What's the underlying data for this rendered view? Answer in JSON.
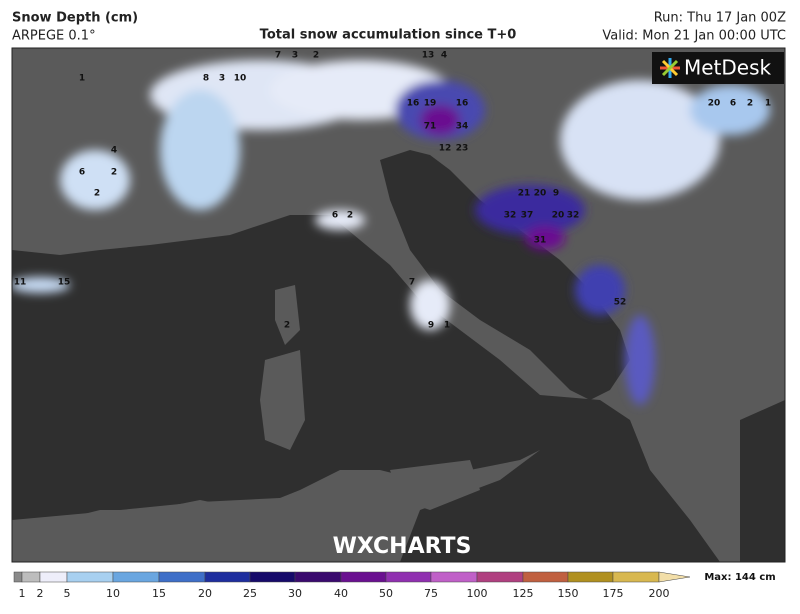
{
  "header": {
    "title": "Snow Depth (cm)",
    "model": "ARPEGE 0.1°",
    "subtitle": "Total snow accumulation since T+0",
    "run": "Run: Thu 17 Jan 00Z",
    "valid": "Valid: Mon 21 Jan 00:00 UTC"
  },
  "logo": "MetDesk",
  "watermark": "WXCHARTS",
  "legend": {
    "ticks": [
      1,
      2,
      5,
      10,
      15,
      20,
      25,
      30,
      40,
      50,
      75,
      100,
      125,
      150,
      175,
      200
    ],
    "colors": [
      "#8a8a8a",
      "#bdbdbd",
      "#eeeefa",
      "#a8d0f0",
      "#6aa6e0",
      "#3f6fc8",
      "#1e2e9e",
      "#160a6a",
      "#3a0a6e",
      "#6a1090",
      "#9030b0",
      "#c060c8",
      "#b04080",
      "#c06040",
      "#b09020",
      "#d8b850",
      "#f2dea8"
    ],
    "max_label": "Max: 144 cm"
  },
  "map": {
    "spot_values": [
      71,
      34,
      23,
      12,
      16,
      19,
      16,
      32,
      37,
      20,
      32,
      31,
      52,
      20,
      21,
      9,
      20,
      6,
      2,
      1,
      13,
      4,
      7,
      3,
      2,
      8,
      3,
      10,
      7,
      9,
      1,
      2,
      6,
      2,
      1,
      4,
      6,
      2,
      2,
      11,
      15
    ]
  }
}
